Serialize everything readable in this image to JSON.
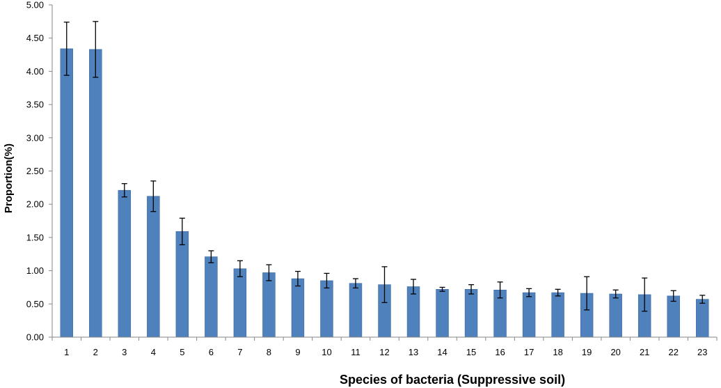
{
  "chart_data": {
    "type": "bar",
    "title": "",
    "xlabel": "Species of bacteria (Suppressive soil)",
    "ylabel": "Proportion(%)",
    "ylim": [
      0,
      5
    ],
    "yticks": [
      "0.00",
      "0.50",
      "1.00",
      "1.50",
      "2.00",
      "2.50",
      "3.00",
      "3.50",
      "4.00",
      "4.50",
      "5.00"
    ],
    "categories": [
      "1",
      "2",
      "3",
      "4",
      "5",
      "6",
      "7",
      "8",
      "9",
      "10",
      "11",
      "12",
      "13",
      "14",
      "15",
      "16",
      "17",
      "18",
      "19",
      "20",
      "21",
      "22",
      "23"
    ],
    "values": [
      4.34,
      4.33,
      2.21,
      2.12,
      1.59,
      1.21,
      1.03,
      0.97,
      0.88,
      0.85,
      0.81,
      0.79,
      0.76,
      0.72,
      0.72,
      0.71,
      0.67,
      0.67,
      0.66,
      0.65,
      0.64,
      0.62,
      0.57
    ],
    "error": [
      0.4,
      0.42,
      0.1,
      0.23,
      0.2,
      0.09,
      0.12,
      0.12,
      0.11,
      0.11,
      0.07,
      0.27,
      0.11,
      0.03,
      0.07,
      0.12,
      0.06,
      0.05,
      0.25,
      0.06,
      0.25,
      0.08,
      0.06
    ],
    "grid": false,
    "legend": "none",
    "colors": {
      "bar": "#4F81BD",
      "bar_edge": "#3C6A9F",
      "axis": "#868686",
      "error": "#000000"
    }
  }
}
